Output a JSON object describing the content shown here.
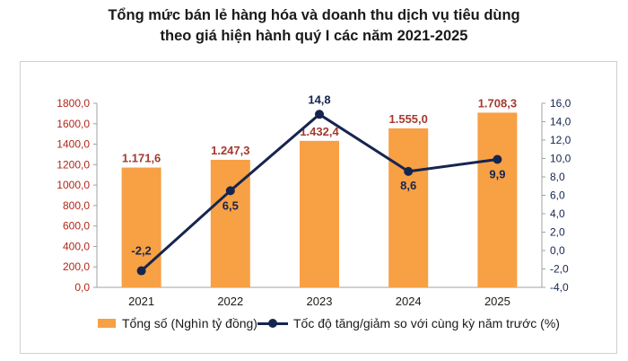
{
  "title_line1": "Tổng mức bán lẻ hàng hóa và doanh thu dịch vụ tiêu dùng",
  "title_line2": "theo giá hiện hành quý I các năm 2021-2025",
  "colors": {
    "bar": "#f7a044",
    "line": "#16254f",
    "bar_label": "#a33a2e",
    "line_label": "#16254f",
    "axis_left": "#b0271a",
    "axis_right": "#16254f"
  },
  "chart_data": {
    "type": "bar",
    "categories": [
      "2021",
      "2022",
      "2023",
      "2024",
      "2025"
    ],
    "series": [
      {
        "name": "Tổng số (Nghìn tỷ đồng)",
        "type": "bar",
        "axis": "left",
        "values": [
          1171.6,
          1247.3,
          1432.4,
          1555.0,
          1708.3
        ],
        "labels": [
          "1.171,6",
          "1.247,3",
          "1.432,4",
          "1.555,0",
          "1.708,3"
        ]
      },
      {
        "name": "Tốc độ tăng/giảm so với cùng kỳ năm trước (%)",
        "type": "line",
        "axis": "right",
        "values": [
          -2.2,
          6.5,
          14.8,
          8.6,
          9.9
        ],
        "labels": [
          "-2,2",
          "6,5",
          "14,8",
          "8,6",
          "9,9"
        ]
      }
    ],
    "y_left": {
      "min": 0,
      "max": 1800,
      "ticks": [
        "0,0",
        "200,0",
        "400,0",
        "600,0",
        "800,0",
        "1000,0",
        "1200,0",
        "1400,0",
        "1600,0",
        "1800,0"
      ]
    },
    "y_right": {
      "min": -4,
      "max": 16,
      "ticks": [
        "-4,0",
        "-2,0",
        "0,0",
        "2,0",
        "4,0",
        "6,0",
        "8,0",
        "10,0",
        "12,0",
        "14,0",
        "16,0"
      ]
    },
    "grid": false,
    "legend_position": "bottom"
  }
}
